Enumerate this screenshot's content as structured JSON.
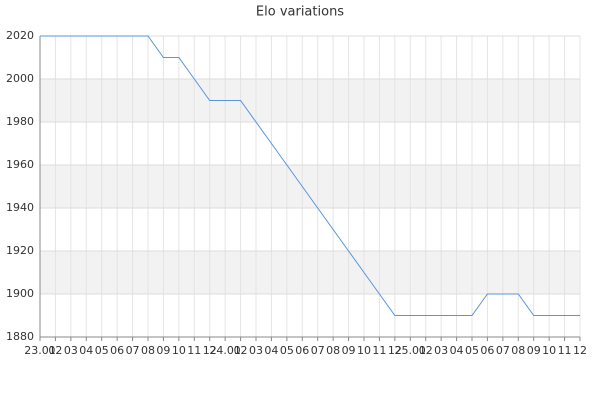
{
  "chart_data": {
    "type": "line",
    "title": "Elo variations",
    "categories": [
      "23.01",
      "02",
      "03",
      "04",
      "05",
      "06",
      "07",
      "08",
      "09",
      "10",
      "11",
      "12",
      "24.01",
      "02",
      "03",
      "04",
      "05",
      "06",
      "07",
      "08",
      "09",
      "10",
      "11",
      "12",
      "25.01",
      "02",
      "03",
      "04",
      "05",
      "06",
      "07",
      "08",
      "09",
      "10",
      "11",
      "12"
    ],
    "series": [
      {
        "name": "Elo",
        "color": "#5b93dc",
        "values": [
          2020,
          2020,
          2020,
          2020,
          2020,
          2020,
          2020,
          2020,
          2010,
          2010,
          2000,
          1990,
          1990,
          1990,
          1980,
          1970,
          1960,
          1950,
          1940,
          1930,
          1920,
          1910,
          1900,
          1890,
          1890,
          1890,
          1890,
          1890,
          1890,
          1900,
          1900,
          1900,
          1890,
          1890,
          1890,
          1890
        ]
      }
    ],
    "ylim": [
      1880,
      2020
    ],
    "yticks": [
      1880,
      1900,
      1920,
      1940,
      1960,
      1980,
      2000,
      2020
    ],
    "grid": true
  }
}
